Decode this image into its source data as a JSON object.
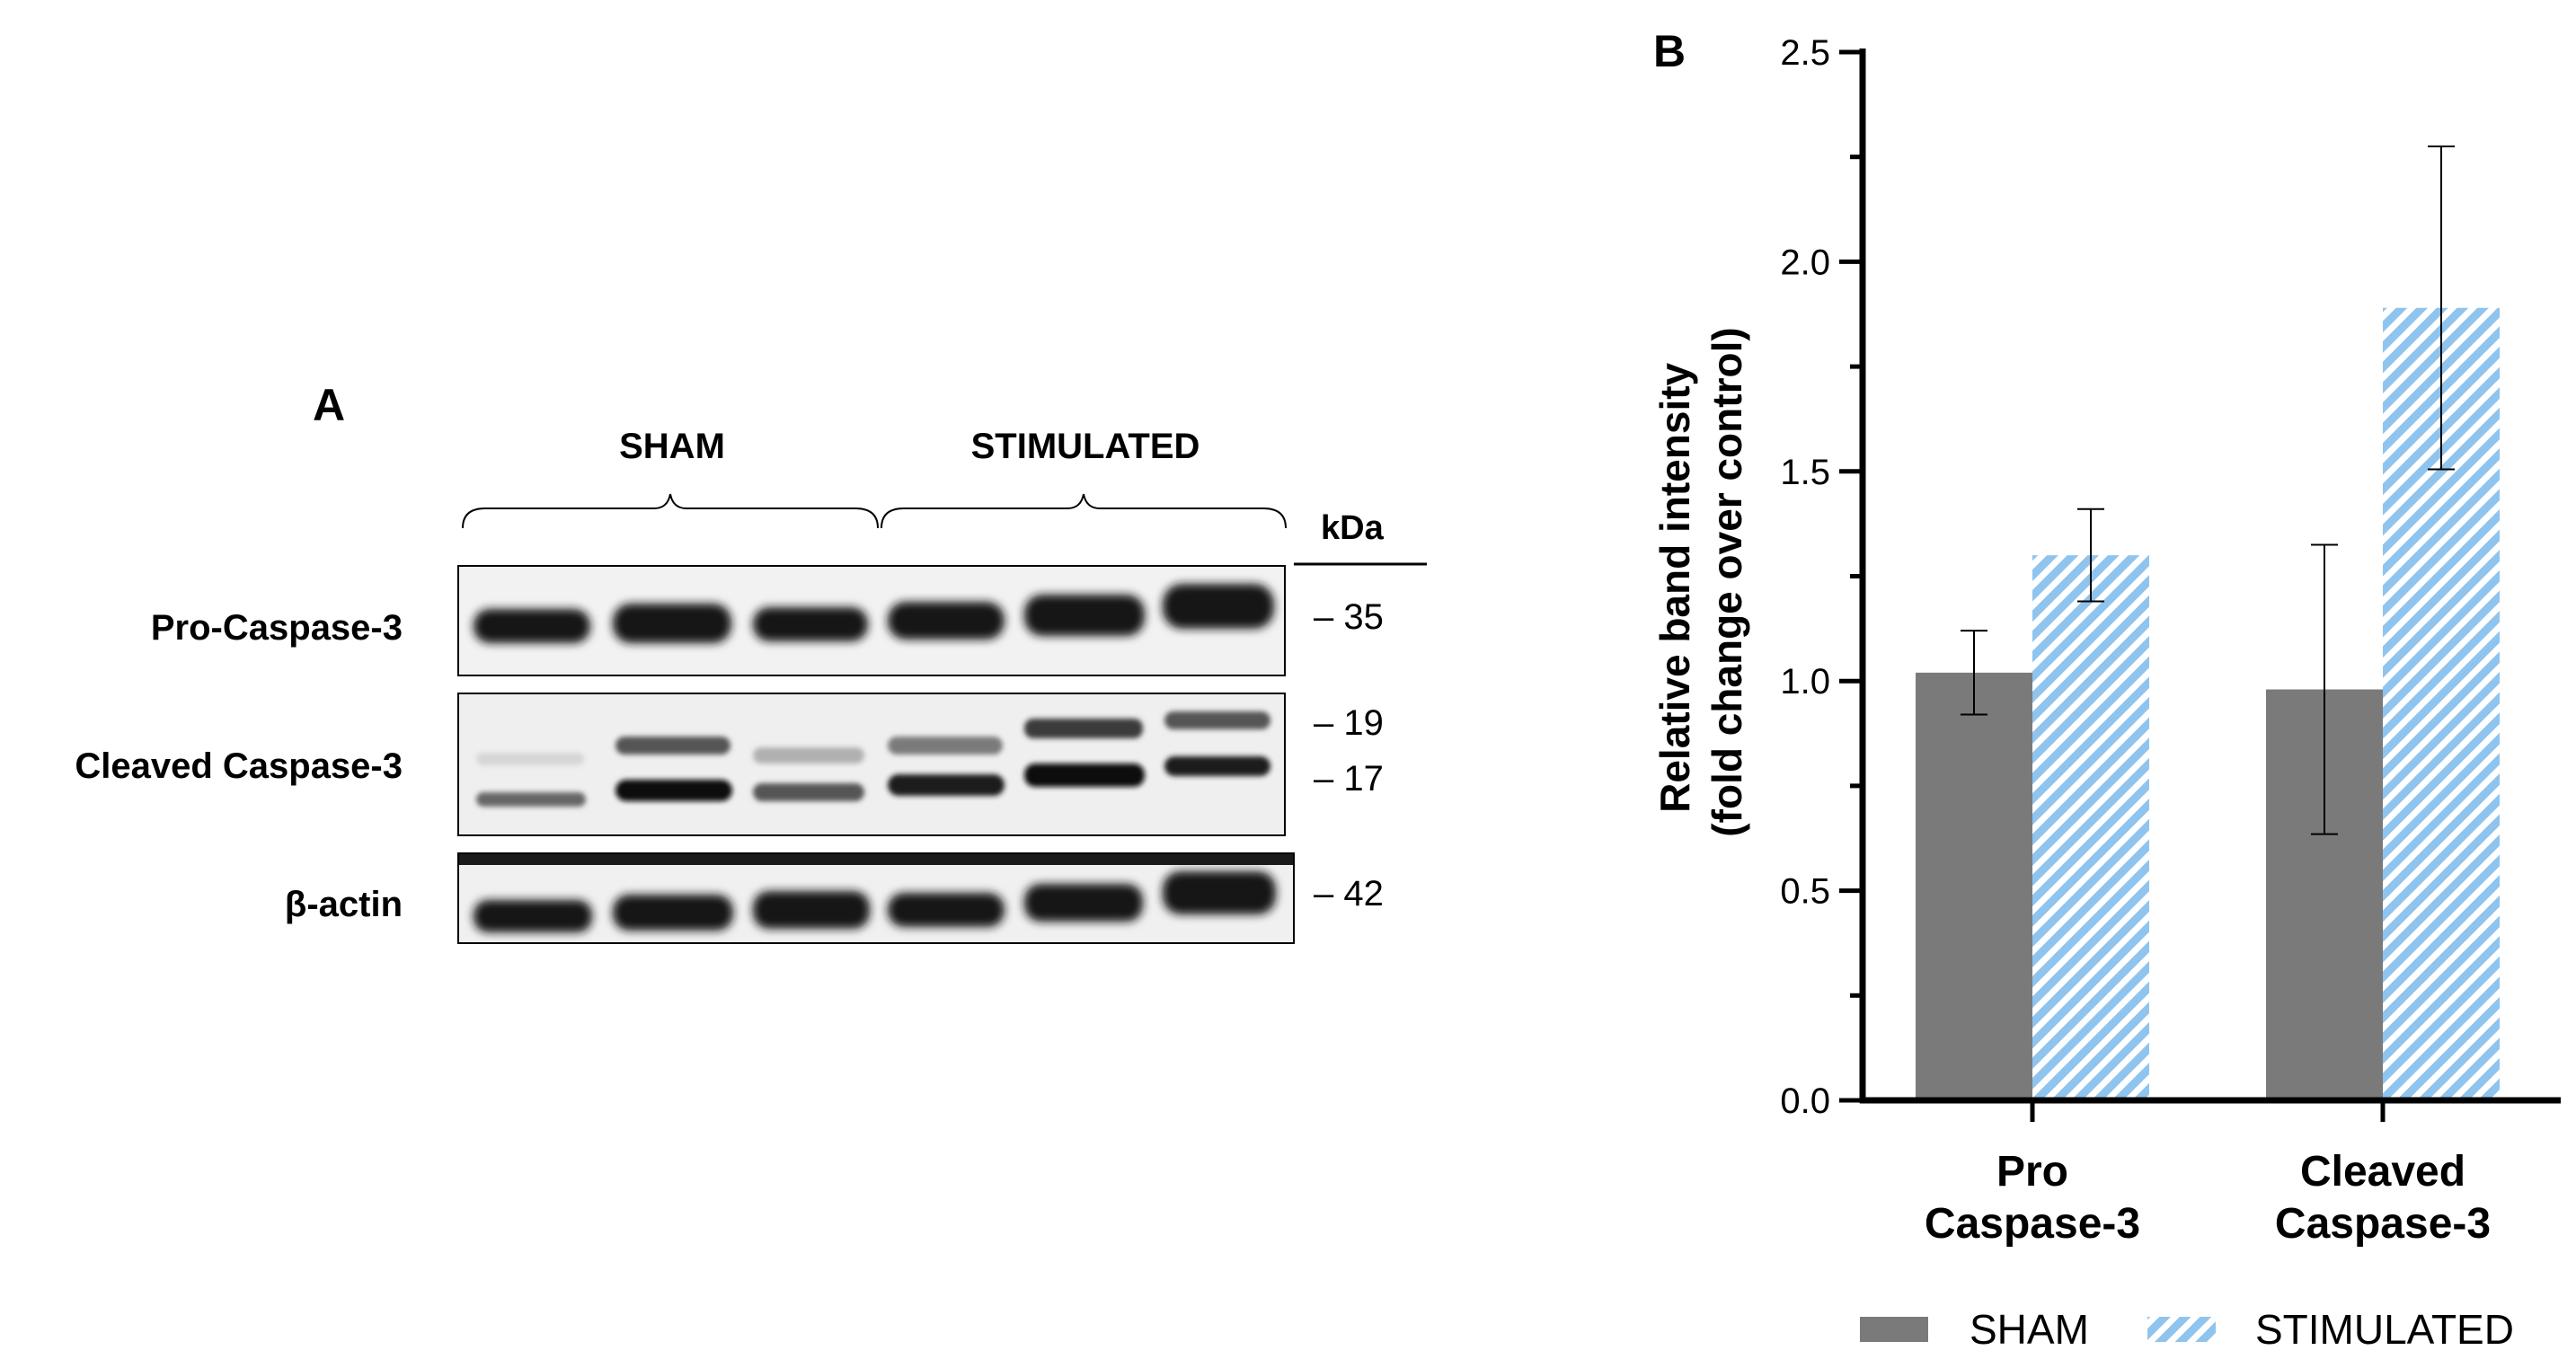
{
  "panel_a": {
    "letter": "A",
    "groups": [
      "SHAM",
      "STIMULATED"
    ],
    "unit": "kDa",
    "rows": [
      {
        "label": "Pro-Caspase-3",
        "markers": [
          "35"
        ]
      },
      {
        "label": "Cleaved Caspase-3",
        "markers": [
          "19",
          "17"
        ]
      },
      {
        "label": "β-actin",
        "markers": [
          "42"
        ]
      }
    ]
  },
  "panel_b": {
    "letter": "B"
  },
  "colors": {
    "sham": "#7a7a7a",
    "stimulated": "#8fc4ee",
    "axis": "#000000"
  },
  "chart_data": {
    "type": "bar",
    "categories": [
      "Pro Caspase-3",
      "Cleaved Caspase-3"
    ],
    "category_lines": [
      [
        "Pro",
        "Caspase-3"
      ],
      [
        "Cleaved",
        "Caspase-3"
      ]
    ],
    "ylabel_lines": [
      "Relative band intensity",
      "(fold change over control)"
    ],
    "ylim": [
      0,
      2.5
    ],
    "yticks": [
      "0.0",
      "0.5",
      "1.0",
      "1.5",
      "2.0",
      "2.5"
    ],
    "series": [
      {
        "name": "SHAM",
        "values": [
          1.02,
          0.98
        ],
        "error": [
          0.1,
          0.345
        ]
      },
      {
        "name": "STIMULATED",
        "values": [
          1.3,
          1.89
        ],
        "error": [
          0.11,
          0.385
        ]
      }
    ],
    "legend_position": "bottom",
    "grid": false
  }
}
